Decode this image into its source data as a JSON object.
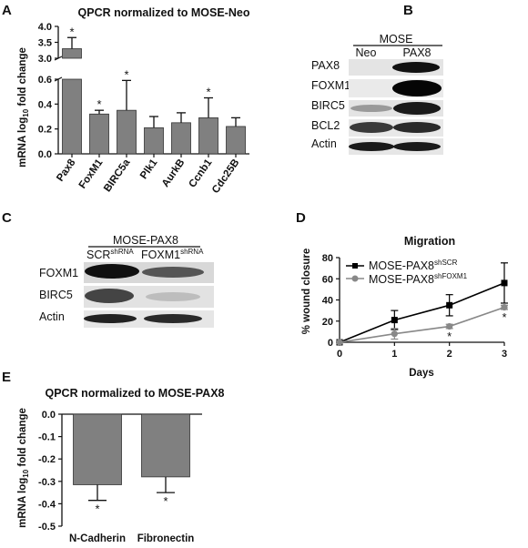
{
  "panels": {
    "A": {
      "label": "A",
      "chart_data": {
        "type": "bar",
        "title": "QPCR normalized to MOSE-Neo",
        "ylabel_main": "mRNA log",
        "ylabel_sub": "10",
        "ylabel_tail": " fold change",
        "categories": [
          "Pax8",
          "FoxM1",
          "BIRC5a",
          "Plk1",
          "AurkB",
          "Ccnb1",
          "Cdc25B"
        ],
        "values": [
          3.3,
          0.32,
          0.35,
          0.21,
          0.25,
          0.29,
          0.22
        ],
        "errors": [
          0.35,
          0.03,
          0.24,
          0.09,
          0.08,
          0.16,
          0.07
        ],
        "significant": [
          true,
          true,
          true,
          false,
          false,
          true,
          false
        ],
        "y_ticks": [
          "0.0",
          "0.2",
          "0.4",
          "0.6",
          "3.0",
          "3.5",
          "4.0"
        ],
        "y_break": true,
        "bar_color": "#808080"
      }
    },
    "B": {
      "label": "B",
      "group_label": "MOSE",
      "columns": [
        "Neo",
        "PAX8"
      ],
      "rows": [
        "PAX8",
        "FOXM1",
        "BIRC5",
        "BCL2",
        "Actin"
      ]
    },
    "C": {
      "label": "C",
      "group_label": "MOSE-PAX8",
      "columns": [
        {
          "main": "SCR",
          "sup": "shRNA"
        },
        {
          "main": "FOXM1",
          "sup": "shRNA"
        }
      ],
      "rows": [
        "FOXM1",
        "BIRC5",
        "Actin"
      ]
    },
    "D": {
      "label": "D",
      "chart_data": {
        "type": "line",
        "title": "Migration",
        "xlabel": "Days",
        "ylabel": "% wound closure",
        "x": [
          0,
          1,
          2,
          3
        ],
        "xlim": [
          0,
          3
        ],
        "ylim": [
          0,
          80
        ],
        "x_ticks": [
          "0",
          "1",
          "2",
          "3"
        ],
        "y_ticks": [
          "0",
          "20",
          "40",
          "60",
          "80"
        ],
        "legend_position": "top-left",
        "series": [
          {
            "name": "MOSE-PAX8",
            "sup": "shSCR",
            "values": [
              0,
              21,
              35,
              56
            ],
            "errors": [
              0,
              9,
              10,
              19
            ],
            "color": "#000000",
            "marker": "square"
          },
          {
            "name": "MOSE-PAX8",
            "sup": "shFOXM1",
            "values": [
              0,
              8,
              15,
              33
            ],
            "errors": [
              0,
              5,
              2,
              2
            ],
            "color": "#888888",
            "marker": "circle"
          }
        ],
        "significant_x": [
          2,
          3
        ]
      }
    },
    "E": {
      "label": "E",
      "chart_data": {
        "type": "bar",
        "title": "QPCR normalized to MOSE-PAX8",
        "ylabel_main": "mRNA log",
        "ylabel_sub": "10",
        "ylabel_tail": " fold change",
        "categories": [
          "N-Cadherin",
          "Fibronectin"
        ],
        "values": [
          -0.315,
          -0.28
        ],
        "errors": [
          0.07,
          0.07
        ],
        "significant": [
          true,
          true
        ],
        "ylim": [
          -0.5,
          0.0
        ],
        "y_ticks": [
          "0.0",
          "-0.1",
          "-0.2",
          "-0.3",
          "-0.4",
          "-0.5"
        ],
        "bar_color": "#808080"
      }
    }
  },
  "star_symbol": "*"
}
